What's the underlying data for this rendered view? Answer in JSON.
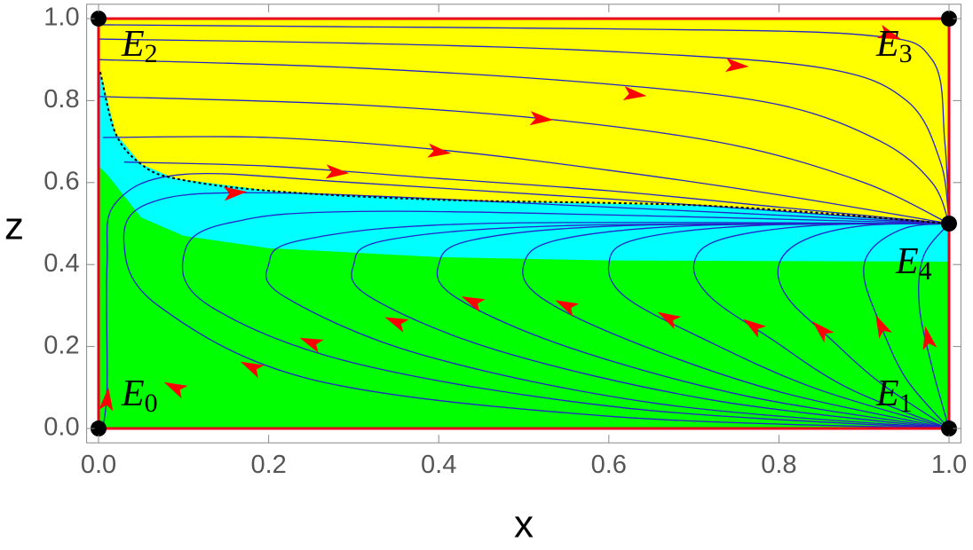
{
  "chart_data": {
    "type": "streamplot",
    "x_label": "x",
    "y_label": "z",
    "xlim": [
      -0.014,
      1.014
    ],
    "ylim": [
      -0.035,
      1.035
    ],
    "xticks": [
      {
        "value": 0,
        "label": "0.0"
      },
      {
        "value": 0.2,
        "label": "0.2"
      },
      {
        "value": 0.4,
        "label": "0.4"
      },
      {
        "value": 0.6,
        "label": "0.6"
      },
      {
        "value": 0.8,
        "label": "0.8"
      },
      {
        "value": 1,
        "label": "1.0"
      }
    ],
    "yticks": [
      {
        "value": 0,
        "label": "0.0"
      },
      {
        "value": 0.2,
        "label": "0.2"
      },
      {
        "value": 0.4,
        "label": "0.4"
      },
      {
        "value": 0.6,
        "label": "0.6"
      },
      {
        "value": 0.8,
        "label": "0.8"
      },
      {
        "value": 1,
        "label": "1.0"
      }
    ],
    "regions": [
      {
        "color": "#00ff00",
        "x": [
          0,
          1,
          1,
          0
        ],
        "y": [
          0,
          0,
          1,
          1
        ]
      },
      {
        "color": "#00ffff",
        "x": [
          0,
          0.002,
          0.02,
          0.05,
          0.09,
          0.2,
          0.4,
          0.72,
          1,
          1,
          0.6,
          0.4,
          0.2,
          0.1,
          0.05,
          0.01,
          0
        ],
        "y": [
          0.87,
          0.87,
          0.72,
          0.645,
          0.61,
          0.58,
          0.558,
          0.543,
          0.5,
          0.407,
          0.41,
          0.418,
          0.44,
          0.47,
          0.515,
          0.62,
          0.64
        ]
      },
      {
        "color": "#ffff00",
        "x": [
          0,
          0.002,
          0.02,
          0.05,
          0.09,
          0.2,
          0.4,
          0.72,
          1,
          1,
          0
        ],
        "y": [
          0.87,
          0.87,
          0.72,
          0.645,
          0.61,
          0.58,
          0.558,
          0.543,
          0.5,
          1,
          1
        ]
      }
    ],
    "boundary": {
      "color": "#e8001c",
      "x": [
        0,
        1,
        1,
        0,
        0
      ],
      "y": [
        0,
        0,
        1,
        1,
        0
      ]
    },
    "separatrix": {
      "x": [
        0.002,
        0.02,
        0.05,
        0.09,
        0.2,
        0.4,
        0.72,
        1
      ],
      "y": [
        0.87,
        0.72,
        0.645,
        0.61,
        0.58,
        0.558,
        0.543,
        0.5
      ]
    },
    "stream_color": "#2424c8",
    "arrow_color": "#ff0000",
    "streamlines": [
      {
        "x": [
          0,
          0.3,
          0.6,
          0.9,
          0.98,
          0.995,
          1
        ],
        "y": [
          0.985,
          0.98,
          0.975,
          0.96,
          0.9,
          0.7,
          0.5
        ]
      },
      {
        "x": [
          0,
          0.3,
          0.6,
          0.85,
          0.95,
          0.99,
          1
        ],
        "y": [
          0.95,
          0.94,
          0.92,
          0.88,
          0.8,
          0.65,
          0.5
        ]
      },
      {
        "x": [
          0,
          0.3,
          0.6,
          0.8,
          0.92,
          0.98,
          1
        ],
        "y": [
          0.9,
          0.88,
          0.84,
          0.79,
          0.7,
          0.6,
          0.5
        ]
      },
      {
        "x": [
          0,
          0.3,
          0.55,
          0.75,
          0.9,
          1
        ],
        "y": [
          0.81,
          0.79,
          0.75,
          0.69,
          0.6,
          0.5
        ]
      },
      {
        "x": [
          0.005,
          0.2,
          0.4,
          0.6,
          0.8,
          1
        ],
        "y": [
          0.71,
          0.71,
          0.68,
          0.63,
          0.57,
          0.5
        ]
      },
      {
        "x": [
          0.03,
          0.2,
          0.4,
          0.6,
          0.8,
          1
        ],
        "y": [
          0.65,
          0.64,
          0.61,
          0.58,
          0.54,
          0.5
        ]
      },
      {
        "x": [
          0.005,
          0.01,
          0.01,
          0.02,
          0.1,
          0.3,
          0.6,
          1
        ],
        "y": [
          0,
          0.1,
          0.4,
          0.55,
          0.62,
          0.6,
          0.56,
          0.5
        ]
      },
      {
        "x": [
          1,
          0.6,
          0.25,
          0.07,
          0.03,
          0.06,
          0.2,
          0.6,
          1
        ],
        "y": [
          0,
          0.03,
          0.12,
          0.3,
          0.45,
          0.55,
          0.575,
          0.54,
          0.5
        ]
      },
      {
        "x": [
          1,
          0.62,
          0.3,
          0.13,
          0.1,
          0.15,
          0.35,
          1
        ],
        "y": [
          0,
          0.05,
          0.16,
          0.3,
          0.42,
          0.5,
          0.53,
          0.5
        ]
      },
      {
        "x": [
          1,
          0.66,
          0.38,
          0.22,
          0.2,
          0.24,
          0.45,
          1
        ],
        "y": [
          0,
          0.06,
          0.18,
          0.32,
          0.4,
          0.46,
          0.5,
          0.5
        ]
      },
      {
        "x": [
          1,
          0.72,
          0.47,
          0.32,
          0.3,
          0.34,
          0.55,
          1
        ],
        "y": [
          0,
          0.07,
          0.19,
          0.32,
          0.4,
          0.46,
          0.495,
          0.5
        ]
      },
      {
        "x": [
          1,
          0.76,
          0.55,
          0.42,
          0.4,
          0.44,
          0.62,
          1
        ],
        "y": [
          0,
          0.08,
          0.2,
          0.32,
          0.4,
          0.46,
          0.495,
          0.5
        ]
      },
      {
        "x": [
          1,
          0.8,
          0.63,
          0.52,
          0.5,
          0.54,
          0.7,
          1
        ],
        "y": [
          0,
          0.09,
          0.21,
          0.32,
          0.4,
          0.46,
          0.495,
          0.5
        ]
      },
      {
        "x": [
          1,
          0.84,
          0.71,
          0.62,
          0.6,
          0.63,
          0.77,
          1
        ],
        "y": [
          0,
          0.1,
          0.22,
          0.32,
          0.4,
          0.46,
          0.495,
          0.5
        ]
      },
      {
        "x": [
          1,
          0.88,
          0.79,
          0.72,
          0.7,
          0.73,
          0.84,
          1
        ],
        "y": [
          0,
          0.1,
          0.22,
          0.32,
          0.4,
          0.46,
          0.495,
          0.5
        ]
      },
      {
        "x": [
          1,
          0.92,
          0.86,
          0.81,
          0.8,
          0.83,
          0.9,
          1
        ],
        "y": [
          0,
          0.11,
          0.22,
          0.32,
          0.4,
          0.46,
          0.495,
          0.5
        ]
      },
      {
        "x": [
          1,
          0.95,
          0.92,
          0.9,
          0.91,
          0.95,
          1
        ],
        "y": [
          0,
          0.12,
          0.25,
          0.37,
          0.44,
          0.49,
          0.5
        ]
      },
      {
        "x": [
          1,
          0.98,
          0.965,
          0.97,
          1
        ],
        "y": [
          0,
          0.15,
          0.3,
          0.42,
          0.5
        ]
      }
    ],
    "arrows": {
      "x": [
        0.93,
        0.75,
        0.63,
        0.52,
        0.4,
        0.28,
        0.16,
        0.01,
        0.09,
        0.18,
        0.25,
        0.35,
        0.44,
        0.55,
        0.67,
        0.77,
        0.85,
        0.92,
        0.975
      ],
      "y": [
        0.96,
        0.885,
        0.815,
        0.755,
        0.675,
        0.625,
        0.575,
        0.07,
        0.1,
        0.15,
        0.21,
        0.26,
        0.31,
        0.3,
        0.27,
        0.25,
        0.24,
        0.25,
        0.22
      ]
    },
    "equilibria": [
      {
        "x": 0,
        "y": 0,
        "label": "E",
        "subscript": "0"
      },
      {
        "x": 1,
        "y": 0,
        "label": "E",
        "subscript": "1"
      },
      {
        "x": 0,
        "y": 1,
        "label": "E",
        "subscript": "2"
      },
      {
        "x": 1,
        "y": 1,
        "label": "E",
        "subscript": "3"
      },
      {
        "x": 1,
        "y": 0.5,
        "label": "E",
        "subscript": "4"
      }
    ]
  }
}
